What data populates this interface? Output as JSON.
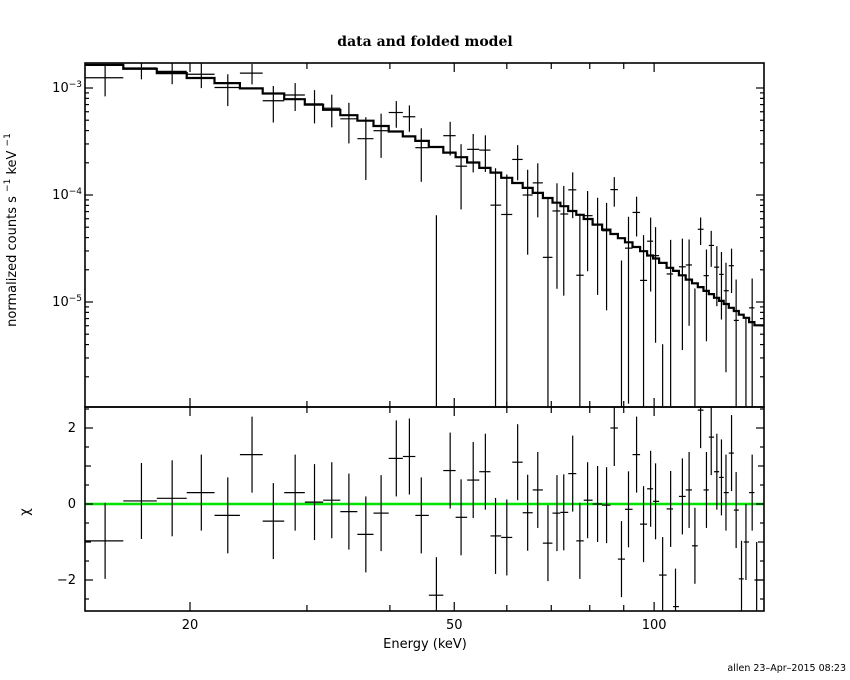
{
  "title": "data and folded model",
  "timestamp": "allen 23–Apr–2015 08:23",
  "axes": {
    "x_label": "Energy (keV)",
    "y_label_parts": [
      "normalized counts s",
      "−1",
      " keV",
      "−1"
    ],
    "chi_label": "χ",
    "x_ticks_labeled": [
      20,
      50,
      100
    ],
    "x_ticks_unlabeled": [
      30,
      40,
      60,
      70,
      80,
      90
    ],
    "y_tick_exponents": [
      -3,
      -4,
      -5
    ],
    "chi_ticks_labeled": [
      -2,
      0,
      2
    ],
    "chi_ticks_unlabeled": [
      -1,
      1
    ],
    "chi_ticks_minor": [
      -2.5,
      -1.5,
      -0.5,
      0.5,
      1.5,
      2.5
    ]
  },
  "colors": {
    "foreground": "#000000",
    "background": "#ffffff",
    "zero_line": "#00e400"
  },
  "chart_data": {
    "type": "line",
    "description": "X-ray spectrum: top panel shows data crosses (rate with x-bin-width and y-error bars) over a stepped folded-model histogram, log-log axes; bottom panel shows fit residuals chi = (data-model)/error with +/-1 error bars and a green zero line.",
    "xscale": "log",
    "xlabel": "Energy (keV)",
    "xlim": [
      13.9,
      146.4
    ],
    "panels": [
      {
        "id": "spectrum",
        "ylabel": "normalized counts s^-1 keV^-1",
        "yscale": "log",
        "ylim": [
          1.04e-06,
          0.00171
        ],
        "y_ticks": [
          0.001,
          0.0001,
          1e-05
        ],
        "legend": "none",
        "grid": false
      },
      {
        "id": "residuals",
        "ylabel": "chi",
        "yscale": "linear",
        "ylim": [
          -2.82,
          2.55
        ],
        "y_ticks": [
          -2,
          0,
          2
        ],
        "zero_line_at": 0,
        "grid": false
      }
    ],
    "model_loglog_anchors": [
      [
        1.146,
        -2.77
      ],
      [
        1.699,
        -3.62
      ],
      [
        2.164,
        -5.26
      ]
    ],
    "model_rule": "log10(model) is the quadratic through the anchor points (log10 E, log10 rate); drawn as a histogram over the data bins",
    "point_fields": [
      "energy_keV",
      "chi",
      "relative_error"
    ],
    "rate_rule": "rate = model(E) * (1 + relative_error * chi); rate_error = model(E) * relative_error; chi error bars are +/-1",
    "points": [
      [
        14.9,
        -0.97,
        0.25
      ],
      [
        16.9,
        0.08,
        0.22
      ],
      [
        18.8,
        0.15,
        0.25
      ],
      [
        20.8,
        0.3,
        0.28
      ],
      [
        22.8,
        -0.3,
        0.3
      ],
      [
        24.8,
        1.3,
        0.3
      ],
      [
        26.7,
        -0.45,
        0.32
      ],
      [
        28.8,
        0.3,
        0.32
      ],
      [
        30.8,
        0.05,
        0.35
      ],
      [
        32.7,
        0.1,
        0.35
      ],
      [
        34.7,
        -0.2,
        0.38
      ],
      [
        36.8,
        -0.8,
        0.4
      ],
      [
        38.8,
        -0.24,
        0.4
      ],
      [
        40.9,
        1.2,
        0.42
      ],
      [
        42.8,
        1.25,
        0.42
      ],
      [
        44.6,
        -0.3,
        0.45
      ],
      [
        47.0,
        -2.4,
        0.55
      ],
      [
        49.3,
        0.88,
        0.5
      ],
      [
        51.2,
        -0.35,
        0.5
      ],
      [
        53.4,
        0.63,
        0.52
      ],
      [
        55.7,
        0.85,
        0.55
      ],
      [
        57.7,
        -0.84,
        0.6
      ],
      [
        60.0,
        -0.88,
        0.62
      ],
      [
        62.3,
        1.1,
        0.6
      ],
      [
        64.5,
        -0.23,
        0.62
      ],
      [
        66.8,
        0.37,
        0.65
      ],
      [
        69.2,
        -1.03,
        0.7
      ],
      [
        71.4,
        -0.24,
        0.68
      ],
      [
        73.1,
        -0.22,
        0.7
      ],
      [
        75.4,
        0.8,
        0.72
      ],
      [
        77.3,
        -0.97,
        0.75
      ],
      [
        79.4,
        0.1,
        0.75
      ],
      [
        82.2,
        0.0,
        0.78
      ],
      [
        84.8,
        -0.03,
        0.8
      ],
      [
        87.1,
        2.0,
        0.8
      ],
      [
        89.3,
        -1.45,
        0.85
      ],
      [
        91.5,
        -0.14,
        0.85
      ],
      [
        94.1,
        1.3,
        0.85
      ],
      [
        96.4,
        -0.53,
        0.88
      ],
      [
        98.8,
        0.4,
        0.9
      ],
      [
        100.5,
        0.07,
        0.9
      ],
      [
        103.0,
        -1.87,
        0.95
      ],
      [
        105.9,
        -0.13,
        0.95
      ],
      [
        107.7,
        -2.7,
        1.0
      ],
      [
        110.3,
        0.2,
        1.0
      ],
      [
        112.9,
        0.37,
        1.0
      ],
      [
        115.2,
        -1.1,
        1.05
      ],
      [
        117.5,
        2.47,
        1.0
      ],
      [
        119.9,
        0.37,
        1.05
      ],
      [
        121.9,
        1.76,
        1.05
      ],
      [
        124.3,
        0.85,
        1.1
      ],
      [
        126.3,
        0.7,
        1.1
      ],
      [
        128.3,
        0.3,
        1.1
      ],
      [
        130.8,
        1.34,
        1.1
      ],
      [
        132.9,
        -0.16,
        1.15
      ],
      [
        135.4,
        -1.97,
        1.2
      ],
      [
        137.5,
        -1.0,
        1.2
      ],
      [
        140.5,
        0.3,
        1.2
      ],
      [
        142.7,
        -2.0,
        1.25
      ]
    ]
  }
}
